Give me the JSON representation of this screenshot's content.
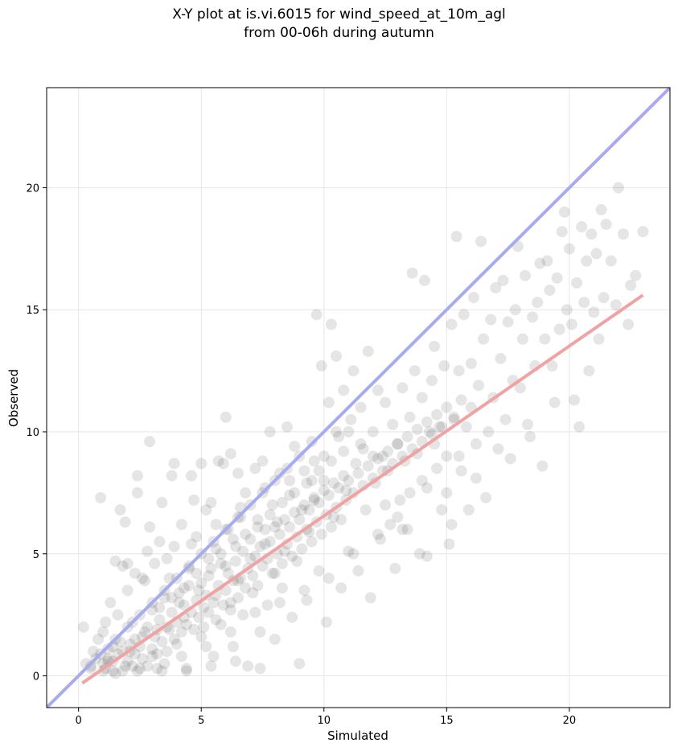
{
  "chart_data": {
    "type": "scatter",
    "title_line1": "X-Y plot at is.vi.6015 for wind_speed_at_10m_agl",
    "title_line2": "from 00-06h during autumn",
    "xlabel": "Simulated",
    "ylabel": "Observed",
    "xlim": [
      -1.3,
      24.1
    ],
    "ylim": [
      -1.3,
      24.1
    ],
    "xticks": [
      0,
      5,
      10,
      15,
      20
    ],
    "yticks": [
      0,
      5,
      10,
      15,
      20
    ],
    "grid": true,
    "point_color": "#000000",
    "identity_line": {
      "color": "#aaaaee",
      "from": [
        -1.3,
        -1.3
      ],
      "to": [
        24.1,
        24.1
      ]
    },
    "fit_line": {
      "color": "#f0a3a3",
      "from": [
        0.15,
        -0.3
      ],
      "to": [
        23.0,
        15.6
      ]
    },
    "points": [
      [
        0.2,
        2.0
      ],
      [
        0.3,
        0.5
      ],
      [
        0.5,
        0.3
      ],
      [
        0.6,
        1.0
      ],
      [
        0.8,
        1.5
      ],
      [
        0.9,
        7.3
      ],
      [
        1.0,
        0.2
      ],
      [
        1.0,
        1.8
      ],
      [
        1.1,
        2.2
      ],
      [
        1.2,
        0.6
      ],
      [
        1.3,
        3.0
      ],
      [
        1.4,
        1.2
      ],
      [
        1.5,
        4.7
      ],
      [
        1.5,
        0.1
      ],
      [
        1.6,
        2.5
      ],
      [
        1.7,
        6.8
      ],
      [
        1.8,
        4.5
      ],
      [
        1.9,
        0.4
      ],
      [
        1.9,
        6.3
      ],
      [
        2.0,
        3.5
      ],
      [
        2.1,
        1.0
      ],
      [
        2.2,
        2.2
      ],
      [
        2.3,
        4.2
      ],
      [
        2.4,
        8.2
      ],
      [
        2.4,
        7.5
      ],
      [
        2.5,
        0.3
      ],
      [
        2.6,
        1.6
      ],
      [
        2.7,
        3.9
      ],
      [
        2.8,
        5.1
      ],
      [
        2.9,
        9.6
      ],
      [
        2.9,
        6.1
      ],
      [
        3.0,
        2.7
      ],
      [
        3.0,
        0.8
      ],
      [
        3.1,
        4.6
      ],
      [
        3.2,
        1.9
      ],
      [
        3.3,
        5.5
      ],
      [
        3.4,
        7.1
      ],
      [
        3.5,
        3.2
      ],
      [
        3.5,
        0.5
      ],
      [
        3.6,
        2.0
      ],
      [
        3.7,
        4.0
      ],
      [
        3.8,
        8.2
      ],
      [
        3.9,
        8.7
      ],
      [
        3.9,
        5.3
      ],
      [
        4.0,
        1.3
      ],
      [
        4.1,
        3.0
      ],
      [
        4.2,
        6.2
      ],
      [
        4.3,
        2.4
      ],
      [
        4.4,
        0.3
      ],
      [
        4.5,
        4.4
      ],
      [
        4.6,
        8.2
      ],
      [
        4.7,
        7.2
      ],
      [
        4.8,
        5.7
      ],
      [
        4.9,
        3.5
      ],
      [
        5.0,
        1.6
      ],
      [
        5.0,
        8.7
      ],
      [
        5.1,
        2.8
      ],
      [
        5.2,
        6.8
      ],
      [
        5.3,
        4.1
      ],
      [
        5.4,
        7.1
      ],
      [
        5.5,
        0.8
      ],
      [
        5.6,
        3.3
      ],
      [
        5.6,
        5.2
      ],
      [
        5.7,
        8.8
      ],
      [
        5.8,
        2.1
      ],
      [
        5.9,
        8.7
      ],
      [
        6.0,
        10.6
      ],
      [
        6.0,
        4.5
      ],
      [
        6.1,
        6.0
      ],
      [
        6.2,
        3.0
      ],
      [
        6.2,
        9.1
      ],
      [
        6.3,
        1.2
      ],
      [
        6.4,
        5.3
      ],
      [
        6.5,
        8.3
      ],
      [
        6.5,
        3.9
      ],
      [
        6.6,
        6.5
      ],
      [
        6.7,
        2.5
      ],
      [
        6.8,
        7.5
      ],
      [
        6.9,
        0.4
      ],
      [
        7.0,
        4.8
      ],
      [
        7.1,
        3.4
      ],
      [
        7.2,
        8.5
      ],
      [
        7.3,
        6.1
      ],
      [
        7.4,
        1.8
      ],
      [
        7.5,
        8.8
      ],
      [
        7.6,
        5.4
      ],
      [
        7.7,
        2.9
      ],
      [
        7.8,
        10.0
      ],
      [
        7.9,
        7.0
      ],
      [
        8.0,
        4.2
      ],
      [
        8.0,
        1.5
      ],
      [
        8.1,
        6.3
      ],
      [
        8.2,
        8.3
      ],
      [
        8.3,
        3.6
      ],
      [
        8.4,
        5.1
      ],
      [
        8.5,
        10.2
      ],
      [
        8.6,
        7.4
      ],
      [
        8.7,
        2.4
      ],
      [
        8.8,
        9.4
      ],
      [
        8.9,
        4.7
      ],
      [
        9.0,
        0.5
      ],
      [
        9.1,
        6.8
      ],
      [
        9.2,
        8.4
      ],
      [
        9.3,
        3.1
      ],
      [
        9.4,
        5.9
      ],
      [
        9.5,
        9.6
      ],
      [
        9.6,
        7.2
      ],
      [
        9.7,
        14.8
      ],
      [
        9.8,
        4.3
      ],
      [
        9.9,
        12.7
      ],
      [
        10.0,
        8.0
      ],
      [
        10.1,
        2.2
      ],
      [
        10.2,
        11.2
      ],
      [
        10.3,
        14.4
      ],
      [
        10.4,
        6.5
      ],
      [
        10.5,
        13.1
      ],
      [
        10.6,
        9.8
      ],
      [
        10.7,
        3.6
      ],
      [
        10.8,
        11.7
      ],
      [
        10.9,
        7.6
      ],
      [
        11.0,
        5.1
      ],
      [
        11.1,
        10.5
      ],
      [
        11.2,
        12.5
      ],
      [
        11.3,
        8.7
      ],
      [
        11.4,
        4.3
      ],
      [
        11.5,
        11.0
      ],
      [
        11.6,
        9.3
      ],
      [
        11.7,
        6.8
      ],
      [
        11.8,
        13.3
      ],
      [
        11.9,
        3.2
      ],
      [
        12.0,
        10.0
      ],
      [
        12.1,
        7.9
      ],
      [
        12.2,
        11.7
      ],
      [
        12.3,
        5.6
      ],
      [
        12.4,
        9.0
      ],
      [
        12.5,
        11.2
      ],
      [
        12.6,
        8.4
      ],
      [
        12.7,
        6.2
      ],
      [
        12.8,
        10.3
      ],
      [
        12.9,
        4.4
      ],
      [
        13.0,
        9.5
      ],
      [
        13.1,
        7.2
      ],
      [
        13.2,
        11.8
      ],
      [
        13.3,
        8.8
      ],
      [
        13.4,
        6.0
      ],
      [
        13.5,
        10.6
      ],
      [
        13.6,
        16.5
      ],
      [
        13.7,
        12.5
      ],
      [
        13.8,
        9.1
      ],
      [
        13.9,
        5.0
      ],
      [
        14.0,
        11.4
      ],
      [
        14.1,
        16.2
      ],
      [
        14.2,
        7.7
      ],
      [
        14.3,
        10.0
      ],
      [
        14.4,
        12.1
      ],
      [
        14.5,
        13.5
      ],
      [
        14.6,
        8.5
      ],
      [
        14.7,
        10.2
      ],
      [
        14.8,
        6.8
      ],
      [
        14.9,
        12.7
      ],
      [
        15.0,
        9.0
      ],
      [
        15.1,
        5.4
      ],
      [
        15.2,
        14.4
      ],
      [
        15.3,
        10.5
      ],
      [
        15.4,
        18.0
      ],
      [
        15.5,
        12.5
      ],
      [
        15.6,
        8.4
      ],
      [
        15.7,
        14.8
      ],
      [
        15.8,
        10.2
      ],
      [
        15.9,
        6.8
      ],
      [
        16.0,
        12.8
      ],
      [
        16.1,
        15.5
      ],
      [
        16.2,
        9.5
      ],
      [
        16.3,
        11.9
      ],
      [
        16.4,
        17.8
      ],
      [
        16.5,
        13.8
      ],
      [
        16.6,
        7.3
      ],
      [
        16.7,
        10.0
      ],
      [
        16.8,
        14.6
      ],
      [
        16.9,
        11.4
      ],
      [
        17.0,
        15.9
      ],
      [
        17.1,
        9.3
      ],
      [
        17.2,
        13.0
      ],
      [
        17.3,
        16.2
      ],
      [
        17.4,
        10.5
      ],
      [
        17.5,
        14.5
      ],
      [
        17.6,
        8.9
      ],
      [
        17.7,
        12.1
      ],
      [
        17.8,
        15.0
      ],
      [
        17.9,
        17.6
      ],
      [
        18.0,
        11.8
      ],
      [
        18.1,
        13.8
      ],
      [
        18.2,
        16.4
      ],
      [
        18.3,
        10.3
      ],
      [
        18.4,
        9.8
      ],
      [
        18.5,
        14.7
      ],
      [
        18.6,
        12.7
      ],
      [
        18.7,
        15.3
      ],
      [
        18.8,
        16.9
      ],
      [
        18.9,
        8.6
      ],
      [
        19.0,
        13.8
      ],
      [
        19.1,
        17.0
      ],
      [
        19.2,
        15.8
      ],
      [
        19.3,
        12.7
      ],
      [
        19.4,
        11.2
      ],
      [
        19.5,
        16.3
      ],
      [
        19.6,
        14.2
      ],
      [
        19.7,
        18.2
      ],
      [
        19.8,
        19.0
      ],
      [
        19.9,
        15.0
      ],
      [
        20.0,
        17.5
      ],
      [
        20.1,
        14.4
      ],
      [
        20.2,
        11.3
      ],
      [
        20.3,
        16.1
      ],
      [
        20.4,
        10.2
      ],
      [
        20.5,
        18.4
      ],
      [
        20.6,
        15.3
      ],
      [
        20.7,
        17.0
      ],
      [
        20.8,
        12.5
      ],
      [
        20.9,
        18.1
      ],
      [
        21.0,
        14.9
      ],
      [
        21.1,
        17.3
      ],
      [
        21.2,
        13.8
      ],
      [
        21.3,
        19.1
      ],
      [
        21.4,
        15.5
      ],
      [
        21.5,
        18.5
      ],
      [
        21.7,
        17.0
      ],
      [
        21.9,
        15.2
      ],
      [
        22.0,
        20.0
      ],
      [
        22.2,
        18.1
      ],
      [
        22.4,
        14.4
      ],
      [
        22.5,
        16.0
      ],
      [
        22.7,
        16.4
      ],
      [
        23.0,
        18.2
      ],
      [
        0.5,
        0.4
      ],
      [
        0.7,
        0.7
      ],
      [
        0.9,
        0.9
      ],
      [
        1.1,
        0.3
      ],
      [
        1.2,
        1.1
      ],
      [
        1.4,
        0.6
      ],
      [
        1.6,
        0.9
      ],
      [
        1.7,
        1.4
      ],
      [
        1.8,
        0.2
      ],
      [
        2.0,
        0.6
      ],
      [
        2.1,
        1.3
      ],
      [
        2.2,
        0.4
      ],
      [
        2.3,
        0.9
      ],
      [
        2.5,
        1.2
      ],
      [
        2.6,
        0.7
      ],
      [
        2.7,
        1.8
      ],
      [
        2.8,
        0.4
      ],
      [
        3.0,
        1.1
      ],
      [
        3.1,
        1.6
      ],
      [
        3.2,
        0.9
      ],
      [
        3.3,
        2.3
      ],
      [
        3.4,
        1.4
      ],
      [
        3.6,
        1.0
      ],
      [
        3.7,
        1.9
      ],
      [
        3.8,
        2.6
      ],
      [
        3.9,
        1.5
      ],
      [
        4.0,
        2.2
      ],
      [
        4.1,
        3.4
      ],
      [
        4.2,
        1.8
      ],
      [
        4.3,
        2.9
      ],
      [
        4.4,
        2.1
      ],
      [
        4.5,
        3.7
      ],
      [
        4.6,
        2.6
      ],
      [
        4.7,
        1.9
      ],
      [
        4.8,
        3.1
      ],
      [
        4.9,
        2.4
      ],
      [
        5.0,
        3.8
      ],
      [
        5.1,
        2.0
      ],
      [
        5.2,
        3.3
      ],
      [
        5.3,
        2.6
      ],
      [
        5.4,
        4.4
      ],
      [
        5.5,
        3.0
      ],
      [
        5.6,
        2.3
      ],
      [
        5.7,
        3.7
      ],
      [
        5.8,
        4.6
      ],
      [
        5.9,
        2.9
      ],
      [
        6.0,
        3.5
      ],
      [
        6.1,
        4.2
      ],
      [
        6.2,
        2.7
      ],
      [
        6.3,
        3.9
      ],
      [
        6.4,
        4.7
      ],
      [
        6.5,
        3.2
      ],
      [
        6.6,
        4.0
      ],
      [
        6.7,
        5.1
      ],
      [
        6.8,
        3.6
      ],
      [
        6.9,
        4.4
      ],
      [
        7.0,
        5.6
      ],
      [
        7.1,
        4.1
      ],
      [
        7.2,
        4.9
      ],
      [
        7.3,
        3.7
      ],
      [
        7.4,
        5.3
      ],
      [
        7.5,
        4.5
      ],
      [
        7.6,
        6.0
      ],
      [
        7.7,
        4.8
      ],
      [
        7.8,
        5.5
      ],
      [
        7.9,
        4.2
      ],
      [
        8.0,
        6.1
      ],
      [
        8.1,
        5.0
      ],
      [
        8.2,
        5.8
      ],
      [
        8.3,
        4.6
      ],
      [
        8.4,
        6.4
      ],
      [
        8.5,
        5.4
      ],
      [
        8.6,
        6.1
      ],
      [
        8.7,
        4.9
      ],
      [
        8.8,
        6.7
      ],
      [
        8.9,
        5.7
      ],
      [
        9.0,
        6.4
      ],
      [
        9.1,
        5.2
      ],
      [
        9.2,
        7.0
      ],
      [
        9.3,
        6.0
      ],
      [
        9.4,
        6.8
      ],
      [
        9.5,
        5.5
      ],
      [
        9.6,
        7.3
      ],
      [
        9.7,
        6.3
      ],
      [
        9.8,
        7.1
      ],
      [
        9.9,
        5.8
      ],
      [
        10.0,
        7.6
      ],
      [
        10.1,
        6.6
      ],
      [
        10.2,
        7.4
      ],
      [
        10.3,
        6.1
      ],
      [
        10.4,
        7.9
      ],
      [
        10.5,
        6.9
      ],
      [
        10.6,
        7.7
      ],
      [
        10.7,
        6.4
      ],
      [
        10.8,
        8.2
      ],
      [
        10.9,
        7.2
      ],
      [
        11.0,
        8.0
      ],
      [
        11.2,
        7.5
      ],
      [
        11.4,
        8.3
      ],
      [
        11.6,
        7.8
      ],
      [
        11.8,
        8.6
      ],
      [
        12.0,
        8.1
      ],
      [
        12.2,
        8.9
      ],
      [
        12.4,
        8.4
      ],
      [
        12.6,
        9.2
      ],
      [
        12.8,
        8.7
      ],
      [
        13.0,
        9.5
      ],
      [
        13.2,
        9.0
      ],
      [
        13.4,
        9.8
      ],
      [
        13.6,
        9.3
      ],
      [
        13.8,
        10.1
      ],
      [
        14.0,
        9.6
      ],
      [
        14.2,
        10.4
      ],
      [
        14.4,
        9.9
      ],
      [
        14.6,
        10.7
      ],
      [
        14.8,
        10.2
      ],
      [
        15.0,
        11.0
      ],
      [
        15.3,
        10.6
      ],
      [
        15.6,
        11.3
      ],
      [
        16.0,
        11.0
      ],
      [
        1.0,
        0.5
      ],
      [
        1.5,
        1.5
      ],
      [
        2.0,
        2.0
      ],
      [
        2.5,
        2.5
      ],
      [
        3.0,
        3.0
      ],
      [
        3.5,
        3.5
      ],
      [
        4.0,
        4.0
      ],
      [
        4.5,
        4.5
      ],
      [
        5.0,
        5.0
      ],
      [
        5.5,
        5.5
      ],
      [
        6.0,
        6.0
      ],
      [
        6.5,
        6.5
      ],
      [
        7.0,
        7.0
      ],
      [
        7.5,
        7.5
      ],
      [
        8.0,
        8.0
      ],
      [
        8.5,
        8.5
      ],
      [
        9.0,
        9.0
      ],
      [
        9.5,
        8.0
      ],
      [
        10.0,
        9.0
      ],
      [
        10.5,
        10.0
      ],
      [
        11.0,
        10.0
      ],
      [
        11.5,
        9.5
      ],
      [
        12.0,
        9.0
      ],
      [
        12.5,
        7.0
      ],
      [
        13.0,
        6.5
      ],
      [
        13.5,
        7.5
      ],
      [
        14.0,
        8.0
      ],
      [
        14.5,
        9.5
      ],
      [
        15.0,
        7.5
      ],
      [
        15.5,
        9.0
      ],
      [
        1.2,
        0.7
      ],
      [
        1.8,
        1.0
      ],
      [
        2.3,
        1.5
      ],
      [
        2.8,
        2.0
      ],
      [
        3.3,
        2.8
      ],
      [
        3.8,
        3.2
      ],
      [
        4.3,
        3.6
      ],
      [
        4.8,
        4.2
      ],
      [
        5.3,
        4.8
      ],
      [
        5.8,
        5.0
      ],
      [
        6.3,
        5.6
      ],
      [
        6.8,
        5.8
      ],
      [
        7.3,
        6.4
      ],
      [
        7.8,
        6.6
      ],
      [
        8.3,
        7.1
      ],
      [
        8.8,
        7.5
      ],
      [
        9.3,
        7.9
      ],
      [
        9.8,
        8.4
      ],
      [
        10.3,
        8.8
      ],
      [
        10.8,
        9.2
      ],
      [
        1.4,
        0.2
      ],
      [
        2.4,
        0.2
      ],
      [
        3.4,
        0.2
      ],
      [
        4.4,
        0.2
      ],
      [
        5.4,
        0.4
      ],
      [
        6.4,
        0.6
      ],
      [
        7.4,
        0.3
      ],
      [
        2.0,
        4.6
      ],
      [
        2.6,
        4.0
      ],
      [
        3.6,
        4.8
      ],
      [
        4.6,
        5.4
      ],
      [
        5.6,
        6.2
      ],
      [
        6.6,
        6.9
      ],
      [
        7.6,
        7.7
      ],
      [
        8.6,
        8.0
      ],
      [
        9.6,
        8.8
      ],
      [
        3.2,
        0.3
      ],
      [
        4.2,
        0.8
      ],
      [
        5.2,
        1.2
      ],
      [
        6.2,
        1.8
      ],
      [
        7.2,
        2.6
      ],
      [
        8.2,
        3.0
      ],
      [
        9.2,
        3.5
      ],
      [
        10.2,
        4.0
      ],
      [
        11.2,
        5.0
      ],
      [
        12.2,
        5.8
      ],
      [
        13.2,
        6.0
      ],
      [
        14.2,
        4.9
      ],
      [
        15.2,
        6.2
      ],
      [
        16.2,
        8.1
      ]
    ]
  }
}
